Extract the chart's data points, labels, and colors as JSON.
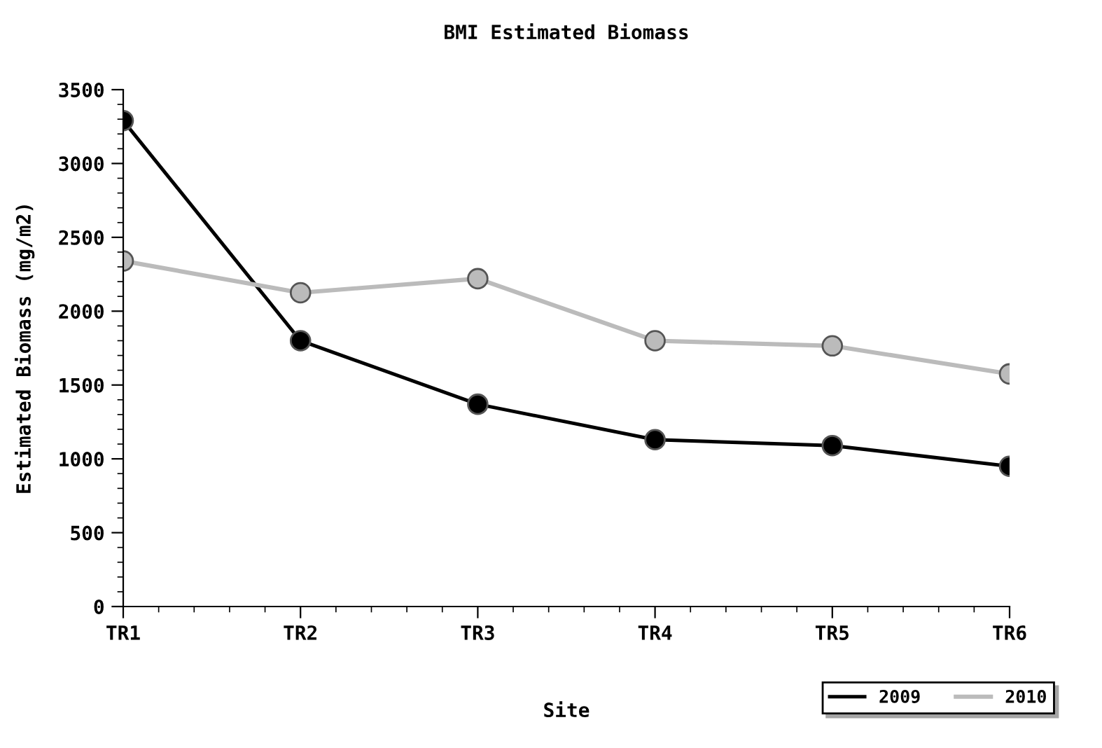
{
  "chart_data": {
    "type": "line",
    "title": "BMI Estimated Biomass",
    "xlabel": "Site",
    "ylabel": "Estimated Biomass (mg/m2)",
    "categories": [
      "TR1",
      "TR2",
      "TR3",
      "TR4",
      "TR5",
      "TR6"
    ],
    "series": [
      {
        "name": "2009",
        "color": "#000000",
        "values": [
          3290,
          1800,
          1370,
          1130,
          1090,
          950
        ]
      },
      {
        "name": "2010",
        "color": "#bbbbbb",
        "values": [
          2340,
          2125,
          2220,
          1800,
          1765,
          1575
        ]
      }
    ],
    "ylim": [
      0,
      3500
    ],
    "yticks": [
      0,
      500,
      1000,
      1500,
      2000,
      2500,
      3000,
      3500
    ],
    "grid": false,
    "legend": "bottom right",
    "marker": "circle",
    "line_style": "solid"
  }
}
